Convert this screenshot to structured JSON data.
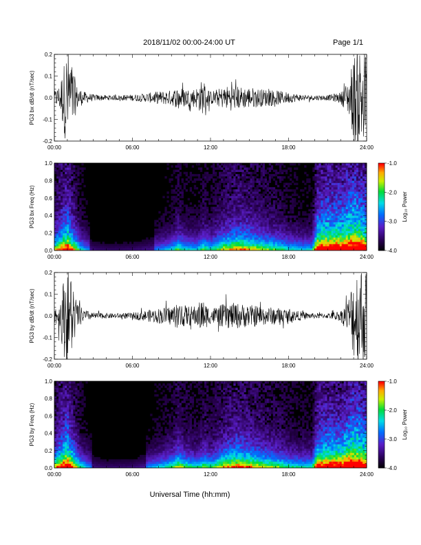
{
  "header": {
    "title": "2018/11/02  00:00-24:00 UT",
    "page": "Page 1/1"
  },
  "chart_data": [
    {
      "type": "line",
      "ylabel": "PG3 bx dB/dt (nT/sec)",
      "xlim": [
        0,
        24
      ],
      "ylim": [
        -0.2,
        0.2
      ],
      "x_ticks": [
        "00:00",
        "06:00",
        "12:00",
        "18:00",
        "24:00"
      ],
      "y_ticks": [
        "-0.2",
        "-0.1",
        "0.0",
        "0.1",
        "0.2"
      ],
      "envelope": {
        "hours": [
          0,
          0.4,
          0.8,
          1.0,
          1.3,
          1.7,
          2.2,
          3,
          4,
          5,
          6,
          7,
          8,
          9,
          9.5,
          10,
          10.5,
          11,
          11.3,
          11.6,
          12,
          12.5,
          13,
          13.5,
          14,
          14.5,
          15,
          15.5,
          16,
          16.5,
          17,
          17.5,
          18,
          18.5,
          19,
          19.5,
          20,
          21,
          22,
          22.6,
          23,
          23.4,
          23.7,
          24
        ],
        "amplitude": [
          0.03,
          0.06,
          0.18,
          0.25,
          0.18,
          0.06,
          0.03,
          0.015,
          0.012,
          0.012,
          0.015,
          0.02,
          0.03,
          0.035,
          0.05,
          0.045,
          0.04,
          0.05,
          0.08,
          0.06,
          0.03,
          0.04,
          0.05,
          0.06,
          0.055,
          0.05,
          0.05,
          0.045,
          0.04,
          0.04,
          0.035,
          0.03,
          0.025,
          0.02,
          0.015,
          0.012,
          0.012,
          0.012,
          0.025,
          0.08,
          0.2,
          0.25,
          0.25,
          0.2
        ]
      },
      "color": "#000000"
    },
    {
      "type": "heatmap",
      "ylabel": "PG3 bx Freq (Hz)",
      "xlim": [
        0,
        24
      ],
      "ylim": [
        0,
        1.0
      ],
      "x_ticks": [
        "00:00",
        "06:00",
        "12:00",
        "18:00",
        "24:00"
      ],
      "y_ticks": [
        "0.0",
        "0.2",
        "0.4",
        "0.6",
        "0.8",
        "1.0"
      ],
      "colorbar": {
        "label": "Log₁₀ Power",
        "range": [
          -4.0,
          -1.0
        ],
        "ticks": [
          "-1.0",
          "-2.0",
          "-3.0",
          "-4.0"
        ]
      },
      "activity": {
        "hours": [
          0,
          0.5,
          1.0,
          1.5,
          2.0,
          3,
          4,
          5,
          6,
          7,
          8,
          9,
          9.5,
          10,
          11,
          11.5,
          12,
          12.5,
          13,
          14,
          15,
          16,
          17,
          18,
          19,
          19.8,
          20.2,
          21,
          22,
          23,
          24
        ],
        "level": [
          0.5,
          0.7,
          0.85,
          0.6,
          0.35,
          0.12,
          0.08,
          0.08,
          0.1,
          0.15,
          0.22,
          0.3,
          0.45,
          0.35,
          0.3,
          0.45,
          0.35,
          0.45,
          0.55,
          0.65,
          0.6,
          0.5,
          0.45,
          0.35,
          0.3,
          0.3,
          0.85,
          0.9,
          0.9,
          1.0,
          0.9
        ]
      }
    },
    {
      "type": "line",
      "ylabel": "PG3 by dB/dt (nT/sec)",
      "xlim": [
        0,
        24
      ],
      "ylim": [
        -0.2,
        0.2
      ],
      "x_ticks": [
        "00:00",
        "06:00",
        "12:00",
        "18:00",
        "24:00"
      ],
      "y_ticks": [
        "-0.2",
        "-0.1",
        "0.0",
        "0.1",
        "0.2"
      ],
      "envelope": {
        "hours": [
          0,
          0.4,
          0.8,
          1.0,
          1.3,
          1.7,
          2.2,
          3,
          4,
          5,
          6,
          7,
          8,
          9,
          9.5,
          10,
          10.5,
          11,
          11.3,
          11.6,
          12,
          12.5,
          13,
          13.5,
          14,
          14.5,
          15,
          15.5,
          16,
          16.5,
          17,
          17.5,
          18,
          18.5,
          19,
          19.5,
          20,
          21,
          22,
          22.6,
          23,
          23.4,
          23.7,
          24
        ],
        "amplitude": [
          0.03,
          0.07,
          0.2,
          0.25,
          0.2,
          0.07,
          0.03,
          0.015,
          0.012,
          0.012,
          0.015,
          0.025,
          0.035,
          0.045,
          0.06,
          0.05,
          0.045,
          0.05,
          0.08,
          0.06,
          0.035,
          0.045,
          0.055,
          0.06,
          0.06,
          0.055,
          0.05,
          0.05,
          0.045,
          0.04,
          0.04,
          0.035,
          0.03,
          0.025,
          0.02,
          0.015,
          0.012,
          0.012,
          0.025,
          0.08,
          0.2,
          0.25,
          0.25,
          0.2
        ]
      },
      "color": "#000000"
    },
    {
      "type": "heatmap",
      "ylabel": "PG3 by Freq (Hz)",
      "xlim": [
        0,
        24
      ],
      "ylim": [
        0,
        1.0
      ],
      "x_ticks": [
        "00:00",
        "06:00",
        "12:00",
        "18:00",
        "24:00"
      ],
      "y_ticks": [
        "0.0",
        "0.2",
        "0.4",
        "0.6",
        "0.8",
        "1.0"
      ],
      "colorbar": {
        "label": "Log₁₀ Power",
        "range": [
          -4.0,
          -1.0
        ],
        "ticks": [
          "-1.0",
          "-2.0",
          "-3.0",
          "-4.0"
        ]
      },
      "activity": {
        "hours": [
          0,
          0.5,
          1.0,
          1.5,
          2.0,
          3,
          4,
          5,
          6,
          7,
          8,
          9,
          9.5,
          10,
          11,
          11.5,
          12,
          12.5,
          13,
          14,
          15,
          16,
          17,
          18,
          19,
          19.8,
          20.2,
          21,
          22,
          23,
          24
        ],
        "level": [
          0.55,
          0.75,
          0.9,
          0.65,
          0.4,
          0.15,
          0.1,
          0.1,
          0.12,
          0.2,
          0.3,
          0.4,
          0.55,
          0.45,
          0.35,
          0.5,
          0.4,
          0.5,
          0.6,
          0.7,
          0.65,
          0.55,
          0.5,
          0.4,
          0.35,
          0.35,
          0.8,
          0.85,
          0.85,
          1.0,
          0.9
        ]
      }
    }
  ],
  "footer": {
    "xlabel": "Universal Time (hh:mm)"
  }
}
